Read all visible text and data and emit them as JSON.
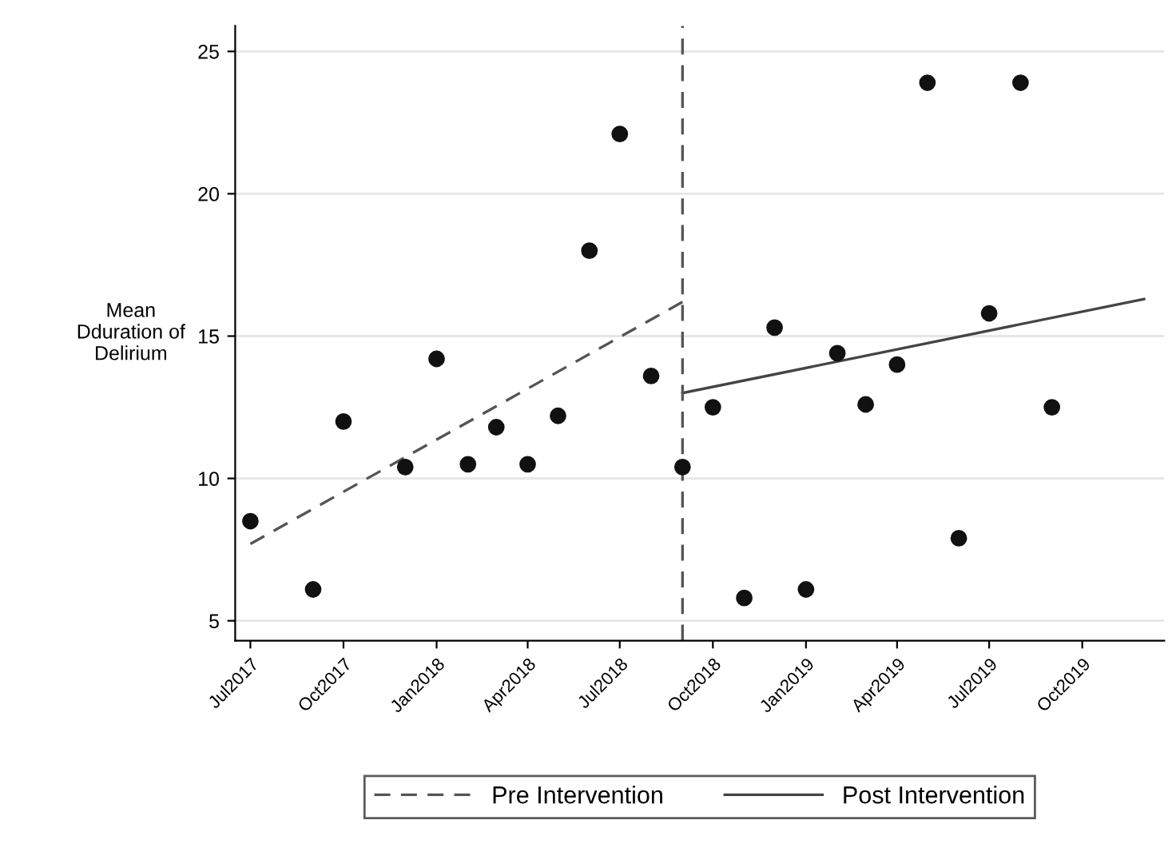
{
  "chart_data": {
    "type": "scatter",
    "ylabel": "Mean\nDduration of\nDelirium",
    "xlim": [
      "2017-06-16",
      "2019-12-21"
    ],
    "ylim": [
      4.3,
      25.9
    ],
    "xticks": [
      {
        "value": "2017-07",
        "label": "Jul2017"
      },
      {
        "value": "2017-10",
        "label": "Oct2017"
      },
      {
        "value": "2018-01",
        "label": "Jan2018"
      },
      {
        "value": "2018-04",
        "label": "Apr2018"
      },
      {
        "value": "2018-07",
        "label": "Jul2018"
      },
      {
        "value": "2018-10",
        "label": "Oct2018"
      },
      {
        "value": "2019-01",
        "label": "Jan2019"
      },
      {
        "value": "2019-04",
        "label": "Apr2019"
      },
      {
        "value": "2019-07",
        "label": "Jul2019"
      },
      {
        "value": "2019-10",
        "label": "Oct2019"
      }
    ],
    "yticks": [
      5,
      10,
      15,
      20,
      25
    ],
    "grid": "y",
    "legend": "bottom",
    "series": [
      {
        "color": "#111111",
        "marker": "circle",
        "x": [
          "2017-07",
          "2017-09",
          "2017-10",
          "2017-12",
          "2018-01",
          "2018-02",
          "2018-03",
          "2018-04",
          "2018-05",
          "2018-06",
          "2018-07",
          "2018-08",
          "2018-09",
          "2018-10",
          "2018-11",
          "2018-12",
          "2019-01",
          "2019-02",
          "2019-03",
          "2019-04",
          "2019-05",
          "2019-06",
          "2019-07",
          "2019-08",
          "2019-09"
        ],
        "values": [
          8.5,
          6.1,
          12.0,
          10.4,
          14.2,
          10.5,
          11.8,
          10.5,
          12.2,
          18.0,
          22.1,
          13.6,
          10.4,
          12.5,
          5.8,
          15.3,
          6.1,
          14.4,
          12.6,
          14.0,
          23.9,
          7.9,
          15.8,
          23.9,
          12.5
        ]
      },
      {
        "type": "line",
        "name": "Pre Intervention",
        "color": "#555555",
        "line_style": "dashed",
        "x": [
          "2017-07",
          "2018-09"
        ],
        "values": [
          7.7,
          16.2
        ]
      },
      {
        "type": "line",
        "name": "Post Intervention",
        "color": "#444444",
        "line_style": "solid",
        "x": [
          "2018-09",
          "2019-12"
        ],
        "values": [
          13.0,
          16.3
        ]
      }
    ],
    "ref_lines": [
      {
        "axis": "x",
        "value": "2018-09",
        "color": "#555555",
        "line_style": "dashed"
      }
    ]
  }
}
